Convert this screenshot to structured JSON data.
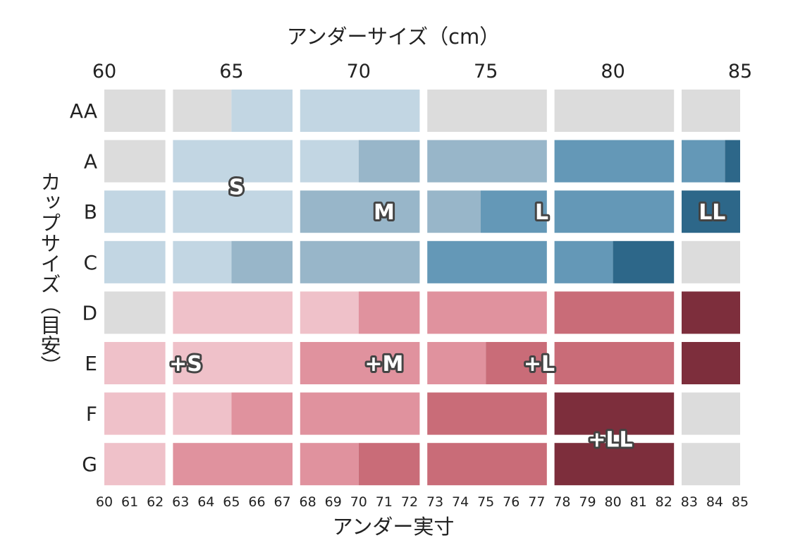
{
  "chart_data": {
    "type": "heatmap",
    "title": "",
    "top_axis": {
      "title": "アンダーサイズ（cm）",
      "ticks": [
        "60",
        "65",
        "70",
        "75",
        "80",
        "85"
      ],
      "tick_values": [
        60,
        65,
        70,
        75,
        80,
        85
      ]
    },
    "bottom_axis": {
      "title": "アンダー実寸",
      "ticks": [
        "60",
        "61",
        "62",
        "63",
        "64",
        "65",
        "66",
        "67",
        "68",
        "69",
        "70",
        "71",
        "72",
        "73",
        "74",
        "75",
        "76",
        "77",
        "78",
        "79",
        "80",
        "81",
        "82",
        "83",
        "84",
        "85"
      ],
      "tick_values": [
        60,
        61,
        62,
        63,
        64,
        65,
        66,
        67,
        68,
        69,
        70,
        71,
        72,
        73,
        74,
        75,
        76,
        77,
        78,
        79,
        80,
        81,
        82,
        83,
        84,
        85
      ]
    },
    "y_axis": {
      "title": "カップサイズ（目安）",
      "categories": [
        "AA",
        "A",
        "B",
        "C",
        "D",
        "E",
        "F",
        "G"
      ]
    },
    "x_range": [
      60,
      85
    ],
    "column_groups": [
      {
        "label": "60",
        "start": 60,
        "end": 62.4
      },
      {
        "label": "65",
        "start": 62.7,
        "end": 67.4
      },
      {
        "label": "70",
        "start": 67.7,
        "end": 72.4
      },
      {
        "label": "75",
        "start": 72.7,
        "end": 77.4
      },
      {
        "label": "80",
        "start": 77.7,
        "end": 82.4
      },
      {
        "label": "85",
        "start": 82.7,
        "end": 85
      }
    ],
    "colors": {
      "none": "#dcdcdc",
      "S": "#c2d6e3",
      "M": "#98b6c9",
      "L": "#6498b7",
      "LL": "#2d6789",
      "+S": "#efc1c9",
      "+M": "#e0929e",
      "+L": "#c96c78",
      "+LL": "#7d2e3c"
    },
    "cells": [
      {
        "cup": "AA",
        "segments": [
          [
            "none",
            60,
            62.4
          ],
          [
            "none",
            62.7,
            65
          ],
          [
            "S",
            65,
            67.4
          ],
          [
            "S",
            67.7,
            72.4
          ],
          [
            "none",
            72.7,
            77.4
          ],
          [
            "none",
            77.7,
            82.4
          ],
          [
            "none",
            82.7,
            85
          ]
        ]
      },
      {
        "cup": "A",
        "segments": [
          [
            "none",
            60,
            62.4
          ],
          [
            "S",
            62.7,
            67.4
          ],
          [
            "S",
            67.7,
            70
          ],
          [
            "M",
            70,
            72.4
          ],
          [
            "M",
            72.7,
            77.4
          ],
          [
            "L",
            77.7,
            82.4
          ],
          [
            "L",
            82.7,
            84.4
          ],
          [
            "LL",
            84.4,
            85
          ]
        ]
      },
      {
        "cup": "B",
        "segments": [
          [
            "S",
            60,
            62.4
          ],
          [
            "S",
            62.7,
            67.4
          ],
          [
            "M",
            67.7,
            72.4
          ],
          [
            "M",
            72.7,
            74.8
          ],
          [
            "L",
            74.8,
            77.4
          ],
          [
            "L",
            77.7,
            82.4
          ],
          [
            "LL",
            82.7,
            85
          ]
        ]
      },
      {
        "cup": "C",
        "segments": [
          [
            "S",
            60,
            62.4
          ],
          [
            "S",
            62.7,
            65
          ],
          [
            "M",
            65,
            67.4
          ],
          [
            "M",
            67.7,
            72.4
          ],
          [
            "L",
            72.7,
            77.4
          ],
          [
            "L",
            77.7,
            80
          ],
          [
            "LL",
            80,
            82.4
          ],
          [
            "none",
            82.7,
            85
          ]
        ]
      },
      {
        "cup": "D",
        "segments": [
          [
            "none",
            60,
            62.4
          ],
          [
            "+S",
            62.7,
            67.4
          ],
          [
            "+S",
            67.7,
            70
          ],
          [
            "+M",
            70,
            72.4
          ],
          [
            "+M",
            72.7,
            77.4
          ],
          [
            "+L",
            77.7,
            82.4
          ],
          [
            "+LL",
            82.7,
            85
          ]
        ]
      },
      {
        "cup": "E",
        "segments": [
          [
            "+S",
            60,
            62.4
          ],
          [
            "+S",
            62.7,
            67.4
          ],
          [
            "+M",
            67.7,
            72.4
          ],
          [
            "+M",
            72.7,
            75
          ],
          [
            "+L",
            75,
            77.4
          ],
          [
            "+L",
            77.7,
            82.4
          ],
          [
            "+LL",
            82.7,
            85
          ]
        ]
      },
      {
        "cup": "F",
        "segments": [
          [
            "+S",
            60,
            62.4
          ],
          [
            "+S",
            62.7,
            65
          ],
          [
            "+M",
            65,
            67.4
          ],
          [
            "+M",
            67.7,
            72.4
          ],
          [
            "+L",
            72.7,
            77.4
          ],
          [
            "+LL",
            77.7,
            82.4
          ],
          [
            "none",
            82.7,
            85
          ]
        ]
      },
      {
        "cup": "G",
        "segments": [
          [
            "+S",
            60,
            62.4
          ],
          [
            "+M",
            62.7,
            67.4
          ],
          [
            "+M",
            67.7,
            70
          ],
          [
            "+L",
            70,
            72.4
          ],
          [
            "+L",
            72.7,
            77.4
          ],
          [
            "+LL",
            77.7,
            82.4
          ],
          [
            "none",
            82.7,
            85
          ]
        ]
      }
    ],
    "size_labels": [
      {
        "text": "S",
        "x": 65.2,
        "row": 1.5
      },
      {
        "text": "M",
        "x": 71,
        "row": 2
      },
      {
        "text": "L",
        "x": 77.2,
        "row": 2
      },
      {
        "text": "LL",
        "x": 83.9,
        "row": 2
      },
      {
        "text": "+S",
        "x": 63.2,
        "row": 5
      },
      {
        "text": "+M",
        "x": 71,
        "row": 5
      },
      {
        "text": "+L",
        "x": 77.1,
        "row": 5
      },
      {
        "text": "+LL",
        "x": 79.9,
        "row": 6.5
      }
    ]
  }
}
